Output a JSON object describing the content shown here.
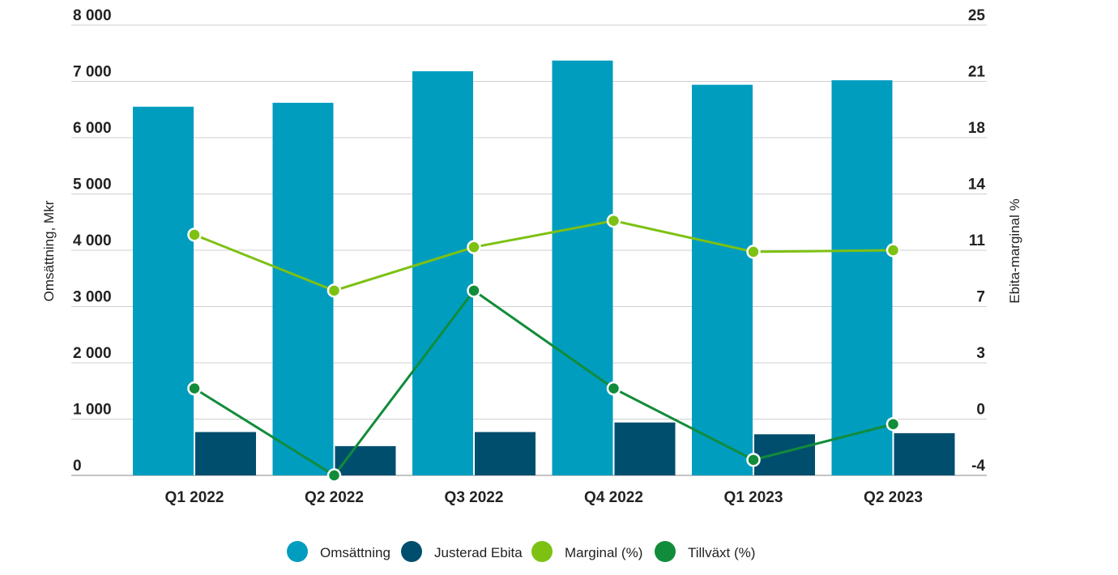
{
  "chart_data": {
    "type": "bar",
    "categories": [
      "Q1 2022",
      "Q2 2022",
      "Q3 2022",
      "Q4 2022",
      "Q1 2023",
      "Q2 2023"
    ],
    "ylabel": "Omsättning, Mkr",
    "y2label": "Ebita-marginal %",
    "ylim": [
      0,
      8000
    ],
    "y2lim": [
      -4,
      25
    ],
    "y_ticks": [
      "0",
      "1 000",
      "2 000",
      "3 000",
      "4 000",
      "5 000",
      "6 000",
      "7 000",
      "8 000"
    ],
    "y2_ticks": [
      "-4",
      "0",
      "3",
      "7",
      "11",
      "14",
      "18",
      "21",
      "25"
    ],
    "grid": true,
    "legend_position": "bottom",
    "series": [
      {
        "name": "Omsättning",
        "type": "bar",
        "axis": "left",
        "color": "#009dbf",
        "values": [
          6550,
          6620,
          7180,
          7370,
          6940,
          7020
        ]
      },
      {
        "name": "Justerad Ebita",
        "type": "bar",
        "axis": "left",
        "color": "#004e6e",
        "values": [
          770,
          520,
          770,
          940,
          730,
          750
        ]
      },
      {
        "name": "Marginal (%)",
        "type": "line",
        "axis": "right",
        "color": "#7dc113",
        "values": [
          11.5,
          7.9,
          10.7,
          12.4,
          10.4,
          10.5
        ]
      },
      {
        "name": "Tillväxt (%)",
        "type": "line",
        "axis": "right",
        "color": "#118c3a",
        "values": [
          1.6,
          -4.0,
          7.9,
          1.6,
          -3.0,
          -0.7
        ]
      }
    ]
  }
}
